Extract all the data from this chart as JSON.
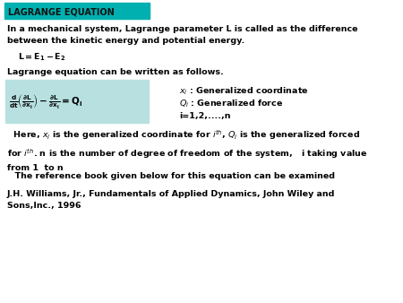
{
  "title": "LAGRANGE EQUATION",
  "title_bg": "#00b0b0",
  "title_text_color": "#111111",
  "bg_color": "white",
  "body_text_color": "black",
  "equation_box_color": "#b8e0e0",
  "para1": "In a mechanical system, Lagrange parameter L is called as the difference\nbetween the kinetic energy and potential energy.",
  "formula1": "$\\mathbf{L = E_{1} - E_{2}}$",
  "para2": "Lagrange equation can be written as follows.",
  "lagrange_eq": "$\\mathbf{\\frac{d}{dt}\\left(\\frac{\\partial L}{\\partial x_{i}}\\right)-\\frac{\\partial L}{\\partial x_{i}}=Q_{i}}$",
  "right1": "$x_i$ : Generalized coordinate",
  "right2": "$Q_i$ : Generalized force",
  "right3": "i=1,2,....,n",
  "para3": "  Here, $x_i$ is the generalized coordinate for $i^{th}$, $Q_i$ is the generalized forced\nfor $i^{th}$. n is the number of degree of freedom of the system,   i taking value\nfrom 1  to n",
  "para4": "  The reference book given below for this equation can be examined",
  "para5": "J.H. Williams, Jr., Fundamentals of Applied Dynamics, John Wiley and\nSons,Inc., 1996",
  "fs_body": 6.8,
  "fs_title": 7.0,
  "fs_eq": 7.5
}
